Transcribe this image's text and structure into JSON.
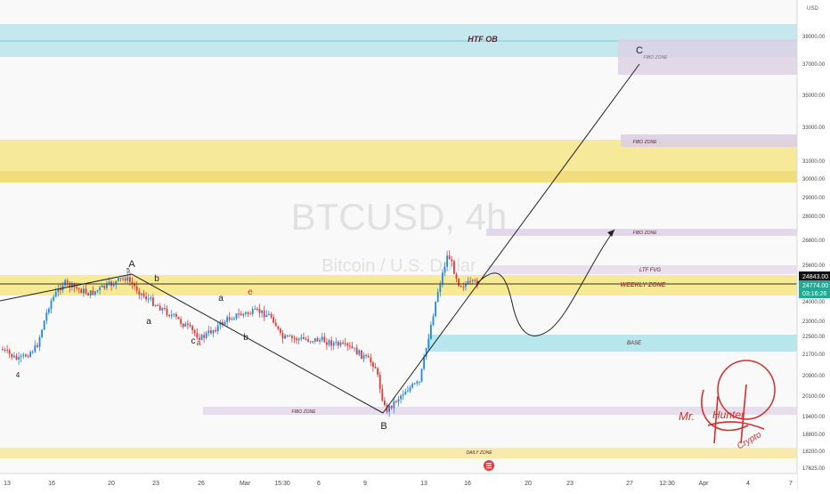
{
  "watermark": {
    "symbol": "BTCUSD, 4h",
    "name": "Bitcoin / U.S. Dollar"
  },
  "price_axis": {
    "currency": "USD",
    "ticks": [
      "39000.00",
      "37000.00",
      "35000.00",
      "33000.00",
      "31000.00",
      "30000.00",
      "29000.00",
      "28000.00",
      "26800.00",
      "25600.00",
      "24000.00",
      "23000.00",
      "22500.00",
      "21700.00",
      "20900.00",
      "20100.00",
      "19400.00",
      "18800.00",
      "18200.00",
      "17625.00"
    ],
    "current_price": "24774.00",
    "countdown": "03:16:26",
    "line_label": "24843.00"
  },
  "time_axis": {
    "ticks": [
      "13",
      "16",
      "20",
      "23",
      "26",
      "Mar",
      "15:30",
      "6",
      "9",
      "13",
      "16",
      "20",
      "23",
      "27",
      "12:30",
      "Apr",
      "4",
      "7"
    ]
  },
  "zones": {
    "htf_ob": "HTF OB",
    "fibo_zone": "FIBO ZONE",
    "ltf_fvg": "LTF FVG",
    "weekly_zone": "WEEKLY ZONE",
    "base": "BASE",
    "daily_zone": "DAILY ZONE"
  },
  "wave_labels": {
    "A": "A",
    "B": "B",
    "C": "C",
    "five": "5",
    "four": "4",
    "b1": "b",
    "a1": "a",
    "c1": "c",
    "a_red": "a",
    "a2": "a",
    "b2": "b",
    "e_red": "e"
  },
  "signature": {
    "line1": "Mr.",
    "line2": "Hunter",
    "line3": "Crypto"
  },
  "colors": {
    "up": "#22ab94",
    "down": "#f23645",
    "up_body": "#1e88e5",
    "down_body": "#e53935",
    "yellow_zone": "#f7e98e",
    "cyan_zone": "#b3e5ec",
    "purple_zone": "#e6dcec",
    "signature": "#d32f2f"
  },
  "chart_data": {
    "type": "candlestick",
    "title": "BTCUSD, 4h",
    "ylim": [
      17600,
      40000
    ],
    "x": [
      "13",
      "16",
      "20",
      "23",
      "26",
      "Mar",
      "15:30",
      "6",
      "9",
      "13",
      "16"
    ],
    "close": [
      21200,
      23200,
      24900,
      24200,
      23400,
      23600,
      22300,
      22200,
      20000,
      23000,
      24774
    ],
    "drawn_path": {
      "points": [
        {
          "label": "A",
          "price": 24950
        },
        {
          "label": "B",
          "price": 19700
        },
        {
          "label": "C",
          "price": 37400
        }
      ]
    }
  }
}
